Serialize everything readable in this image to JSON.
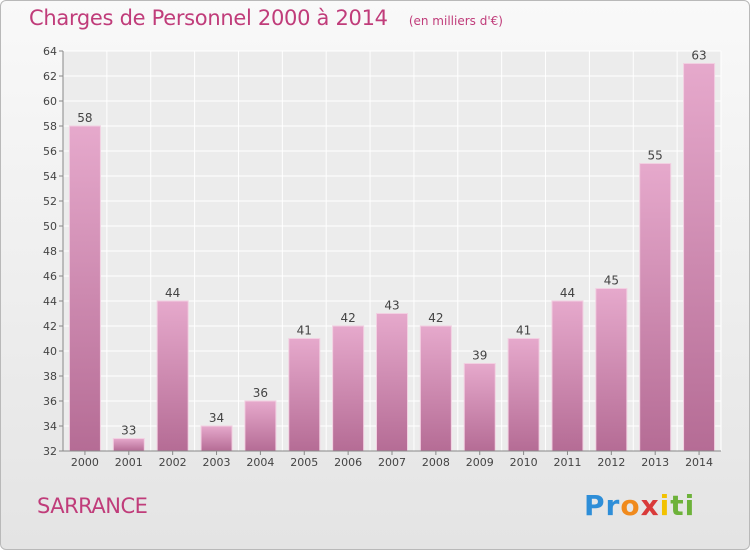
{
  "header": {
    "title": "Charges de Personnel 2000 à 2014",
    "subtitle": "(en milliers d'€)"
  },
  "place_name": "SARRANCE",
  "logo": {
    "text": "Proxiti",
    "parts": [
      "Pr",
      "o",
      "x",
      "i",
      "ti"
    ]
  },
  "colors": {
    "bar_top": "#e6a9cc",
    "bar_bottom": "#b56c95",
    "accent": "#c03c7a"
  },
  "chart_data": {
    "type": "bar",
    "title": "Charges de Personnel 2000 à 2014",
    "subtitle": "(en milliers d'€)",
    "xlabel": "",
    "ylabel": "",
    "categories": [
      "2000",
      "2001",
      "2002",
      "2003",
      "2004",
      "2005",
      "2006",
      "2007",
      "2008",
      "2009",
      "2010",
      "2011",
      "2012",
      "2013",
      "2014"
    ],
    "values": [
      58,
      33,
      44,
      34,
      36,
      41,
      42,
      43,
      42,
      39,
      41,
      44,
      45,
      55,
      63
    ],
    "ylim": [
      32,
      64
    ],
    "yticks": [
      32,
      34,
      36,
      38,
      40,
      42,
      44,
      46,
      48,
      50,
      52,
      54,
      56,
      58,
      60,
      62,
      64
    ],
    "grid": true,
    "legend": "none"
  }
}
